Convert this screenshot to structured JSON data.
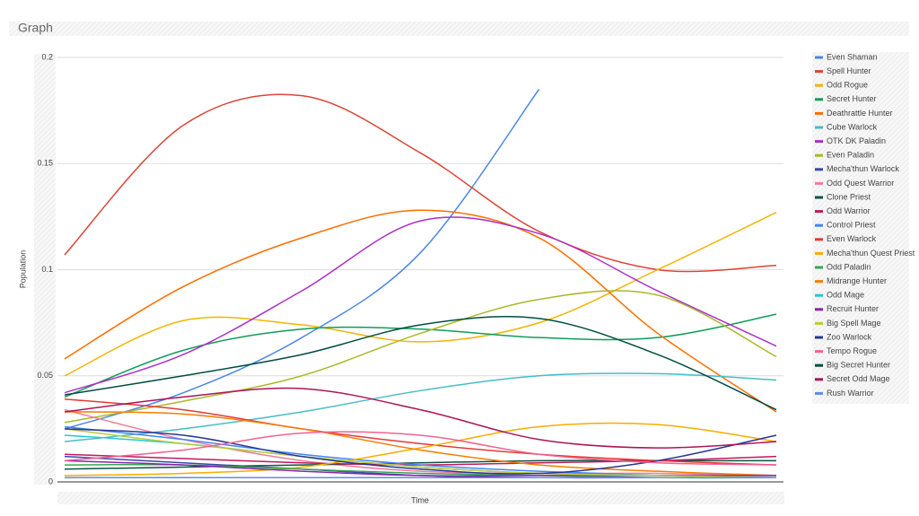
{
  "chart_data": {
    "type": "line",
    "title": "Graph",
    "x_label": "Time",
    "y_label": "Population",
    "categories": [
      null,
      null,
      null,
      null,
      null,
      null,
      null
    ],
    "ylim": [
      0,
      0.2
    ],
    "yticks": [
      0,
      0.05,
      0.1,
      0.15,
      0.2
    ],
    "grid": true,
    "legend": "right",
    "series": [
      {
        "name": "Even Shaman",
        "color": "#4a86e8",
        "values": [
          0.025,
          0.042,
          0.068,
          0.108,
          0.185,
          null,
          null
        ]
      },
      {
        "name": "Spell Hunter",
        "color": "#db4437",
        "values": [
          0.107,
          0.168,
          0.182,
          0.155,
          0.118,
          0.1,
          0.102
        ]
      },
      {
        "name": "Odd Rogue",
        "color": "#f4b400",
        "values": [
          0.05,
          0.076,
          0.074,
          0.066,
          0.075,
          0.1,
          0.127
        ]
      },
      {
        "name": "Secret Hunter",
        "color": "#0f9d58",
        "values": [
          0.04,
          0.062,
          0.072,
          0.072,
          0.068,
          0.068,
          0.079
        ]
      },
      {
        "name": "Deathrattle Hunter",
        "color": "#ff6d00",
        "values": [
          0.058,
          0.092,
          0.115,
          0.128,
          0.115,
          0.07,
          0.033
        ]
      },
      {
        "name": "Cube Warlock",
        "color": "#46bdc6",
        "values": [
          0.019,
          0.025,
          0.033,
          0.043,
          0.05,
          0.051,
          0.048
        ]
      },
      {
        "name": "OTK DK Paladin",
        "color": "#ab30c4",
        "values": [
          0.042,
          0.06,
          0.09,
          0.123,
          0.117,
          0.09,
          0.064
        ]
      },
      {
        "name": "Even Paladin",
        "color": "#abb82a",
        "values": [
          0.028,
          0.038,
          0.05,
          0.07,
          0.086,
          0.088,
          0.059
        ]
      },
      {
        "name": "Mecha'thun Warlock",
        "color": "#3949ab",
        "values": [
          0.012,
          0.009,
          0.006,
          0.003,
          0.002,
          0.002,
          0.002
        ]
      },
      {
        "name": "Odd Quest Warrior",
        "color": "#f07b9e",
        "values": [
          0.034,
          0.02,
          0.01,
          0.005,
          0.004,
          0.004,
          0.003
        ]
      },
      {
        "name": "Clone Priest",
        "color": "#0b5345",
        "values": [
          0.006,
          0.007,
          0.008,
          0.009,
          0.01,
          0.01,
          0.01
        ]
      },
      {
        "name": "Odd Warrior",
        "color": "#c2185b",
        "values": [
          0.013,
          0.011,
          0.009,
          0.008,
          0.009,
          0.01,
          0.012
        ]
      },
      {
        "name": "Control Priest",
        "color": "#4285f4",
        "values": [
          0.026,
          0.02,
          0.013,
          0.008,
          0.005,
          0.003,
          0.002
        ]
      },
      {
        "name": "Even Warlock",
        "color": "#e53935",
        "values": [
          0.039,
          0.034,
          0.025,
          0.018,
          0.013,
          0.01,
          0.008
        ]
      },
      {
        "name": "Mecha'thun Quest Priest",
        "color": "#f9ab00",
        "values": [
          0.003,
          0.004,
          0.007,
          0.016,
          0.026,
          0.027,
          0.019
        ]
      },
      {
        "name": "Odd Paladin",
        "color": "#33a853",
        "values": [
          0.008,
          0.008,
          0.006,
          0.004,
          0.003,
          0.002,
          0.002
        ]
      },
      {
        "name": "Midrange Hunter",
        "color": "#f57c00",
        "values": [
          0.033,
          0.032,
          0.025,
          0.015,
          0.008,
          0.005,
          0.003
        ]
      },
      {
        "name": "Odd Mage",
        "color": "#26c6da",
        "values": [
          0.022,
          0.018,
          0.012,
          0.007,
          0.004,
          0.003,
          0.003
        ]
      },
      {
        "name": "Recruit Hunter",
        "color": "#8e24aa",
        "values": [
          0.01,
          0.008,
          0.005,
          0.003,
          0.003,
          0.003,
          0.003
        ]
      },
      {
        "name": "Big Spell Mage",
        "color": "#c0ca33",
        "values": [
          0.025,
          0.018,
          0.012,
          0.007,
          0.004,
          0.003,
          0.002
        ]
      },
      {
        "name": "Zoo Warlock",
        "color": "#283593",
        "values": [
          0.025,
          0.022,
          0.012,
          0.006,
          0.004,
          0.01,
          0.022
        ]
      },
      {
        "name": "Tempo Rogue",
        "color": "#f06292",
        "values": [
          0.01,
          0.015,
          0.023,
          0.022,
          0.013,
          0.009,
          0.008
        ]
      },
      {
        "name": "Big Secret Hunter",
        "color": "#004d40",
        "values": [
          0.041,
          0.05,
          0.06,
          0.074,
          0.077,
          0.06,
          0.034
        ]
      },
      {
        "name": "Secret Odd Mage",
        "color": "#ad1457",
        "values": [
          0.033,
          0.04,
          0.044,
          0.034,
          0.02,
          0.016,
          0.019
        ]
      },
      {
        "name": "Rush Warrior",
        "color": "#5c8ee6",
        "values": [
          0.002,
          0.002,
          0.002,
          0.002,
          0.002,
          0.002,
          0.002
        ]
      }
    ]
  }
}
